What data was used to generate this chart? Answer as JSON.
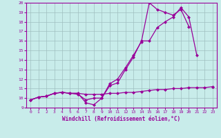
{
  "xlabel": "Windchill (Refroidissement éolien,°C)",
  "background_color": "#c8ecea",
  "line_color": "#990099",
  "grid_color": "#9fbfbf",
  "xlim": [
    -0.5,
    23.5
  ],
  "ylim": [
    9,
    20
  ],
  "yticks": [
    9,
    10,
    11,
    12,
    13,
    14,
    15,
    16,
    17,
    18,
    19,
    20
  ],
  "xticks": [
    0,
    1,
    2,
    3,
    4,
    5,
    6,
    7,
    8,
    9,
    10,
    11,
    12,
    13,
    14,
    15,
    16,
    17,
    18,
    19,
    20,
    21,
    22,
    23
  ],
  "line1_x": [
    0,
    1,
    2,
    3,
    4,
    5,
    6,
    7,
    8,
    9,
    10,
    11,
    12,
    13,
    14,
    15,
    16,
    17,
    18,
    19,
    20,
    21,
    22,
    23
  ],
  "line1_y": [
    9.8,
    10.1,
    10.2,
    10.5,
    10.6,
    10.5,
    10.5,
    10.4,
    10.4,
    10.4,
    10.5,
    10.5,
    10.6,
    10.6,
    10.7,
    10.8,
    10.9,
    10.9,
    11.0,
    11.0,
    11.1,
    11.1,
    11.1,
    11.2
  ],
  "line2_x": [
    0,
    1,
    2,
    3,
    4,
    5,
    6,
    7,
    8,
    9,
    10,
    11,
    12,
    13,
    14,
    15,
    16,
    17,
    18,
    19,
    20,
    21,
    22,
    23
  ],
  "line2_y": [
    9.8,
    10.1,
    10.2,
    10.5,
    10.6,
    10.5,
    10.4,
    9.8,
    10.0,
    10.0,
    11.3,
    11.6,
    13.0,
    14.3,
    16.0,
    16.0,
    17.4,
    18.0,
    18.5,
    19.5,
    18.5,
    14.5,
    null,
    11.2
  ],
  "line3_x": [
    0,
    1,
    2,
    3,
    4,
    5,
    6,
    7,
    8,
    9,
    10,
    11,
    12,
    13,
    14,
    15,
    16,
    17,
    18,
    19,
    20,
    21,
    22,
    23
  ],
  "line3_y": [
    9.8,
    10.1,
    10.2,
    10.5,
    10.6,
    10.5,
    10.5,
    9.5,
    9.3,
    10.0,
    11.5,
    12.0,
    13.2,
    14.5,
    15.9,
    20.0,
    19.3,
    19.0,
    18.7,
    19.3,
    17.5,
    null,
    null,
    null
  ]
}
